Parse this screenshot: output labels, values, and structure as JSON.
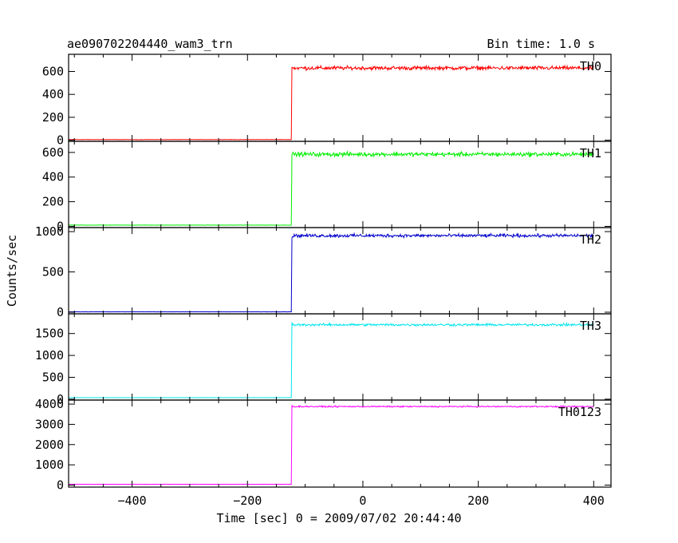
{
  "chart_data": {
    "type": "line",
    "title": "ae090702204440_wam3_trn",
    "bin_time_label": "Bin time: 1.0 s",
    "xlabel": "Time [sec] 0 = 2009/07/02 20:44:40",
    "ylabel": "Counts/sec",
    "xlim": [
      -510,
      430
    ],
    "x_ticks": [
      -400,
      -200,
      0,
      200,
      400
    ],
    "x_tick_labels": [
      "−400",
      "−200",
      "0",
      "200",
      "400"
    ],
    "x_start": -510,
    "x_end": 400,
    "onset_x": -123,
    "grid": false,
    "panels": [
      {
        "name": "TH0",
        "color": "#ff0000",
        "ylim": [
          -10,
          750
        ],
        "yticks": [
          0,
          200,
          400,
          600
        ],
        "y_tick_labels": [
          "0",
          "200",
          "400",
          "600"
        ],
        "pre_level": 5,
        "post_level": 630,
        "post_noise": 25,
        "first_point": 640
      },
      {
        "name": "TH1",
        "color": "#00ee00",
        "ylim": [
          -10,
          690
        ],
        "yticks": [
          0,
          200,
          400,
          600
        ],
        "y_tick_labels": [
          "0",
          "200",
          "400",
          "600"
        ],
        "pre_level": 10,
        "post_level": 585,
        "post_noise": 25,
        "first_point": 580
      },
      {
        "name": "TH2",
        "color": "#0000cc",
        "ylim": [
          -20,
          1050
        ],
        "yticks": [
          0,
          500,
          1000
        ],
        "y_tick_labels": [
          "0",
          "500",
          "1000"
        ],
        "pre_level": 5,
        "post_level": 950,
        "post_noise": 30,
        "first_point": 920
      },
      {
        "name": "TH3",
        "color": "#00e5ee",
        "ylim": [
          -20,
          1950
        ],
        "yticks": [
          0,
          500,
          1000,
          1500
        ],
        "y_tick_labels": [
          "0",
          "500",
          "1000",
          "1500"
        ],
        "pre_level": 35,
        "post_level": 1700,
        "post_noise": 40,
        "first_point": 1760
      },
      {
        "name": "TH0123",
        "color": "#ff00ff",
        "ylim": [
          -100,
          4200
        ],
        "yticks": [
          0,
          1000,
          2000,
          3000,
          4000
        ],
        "y_tick_labels": [
          "0",
          "1000",
          "2000",
          "3000",
          "4000"
        ],
        "pre_level": 40,
        "post_level": 3880,
        "post_noise": 50,
        "first_point": 3950
      }
    ]
  }
}
